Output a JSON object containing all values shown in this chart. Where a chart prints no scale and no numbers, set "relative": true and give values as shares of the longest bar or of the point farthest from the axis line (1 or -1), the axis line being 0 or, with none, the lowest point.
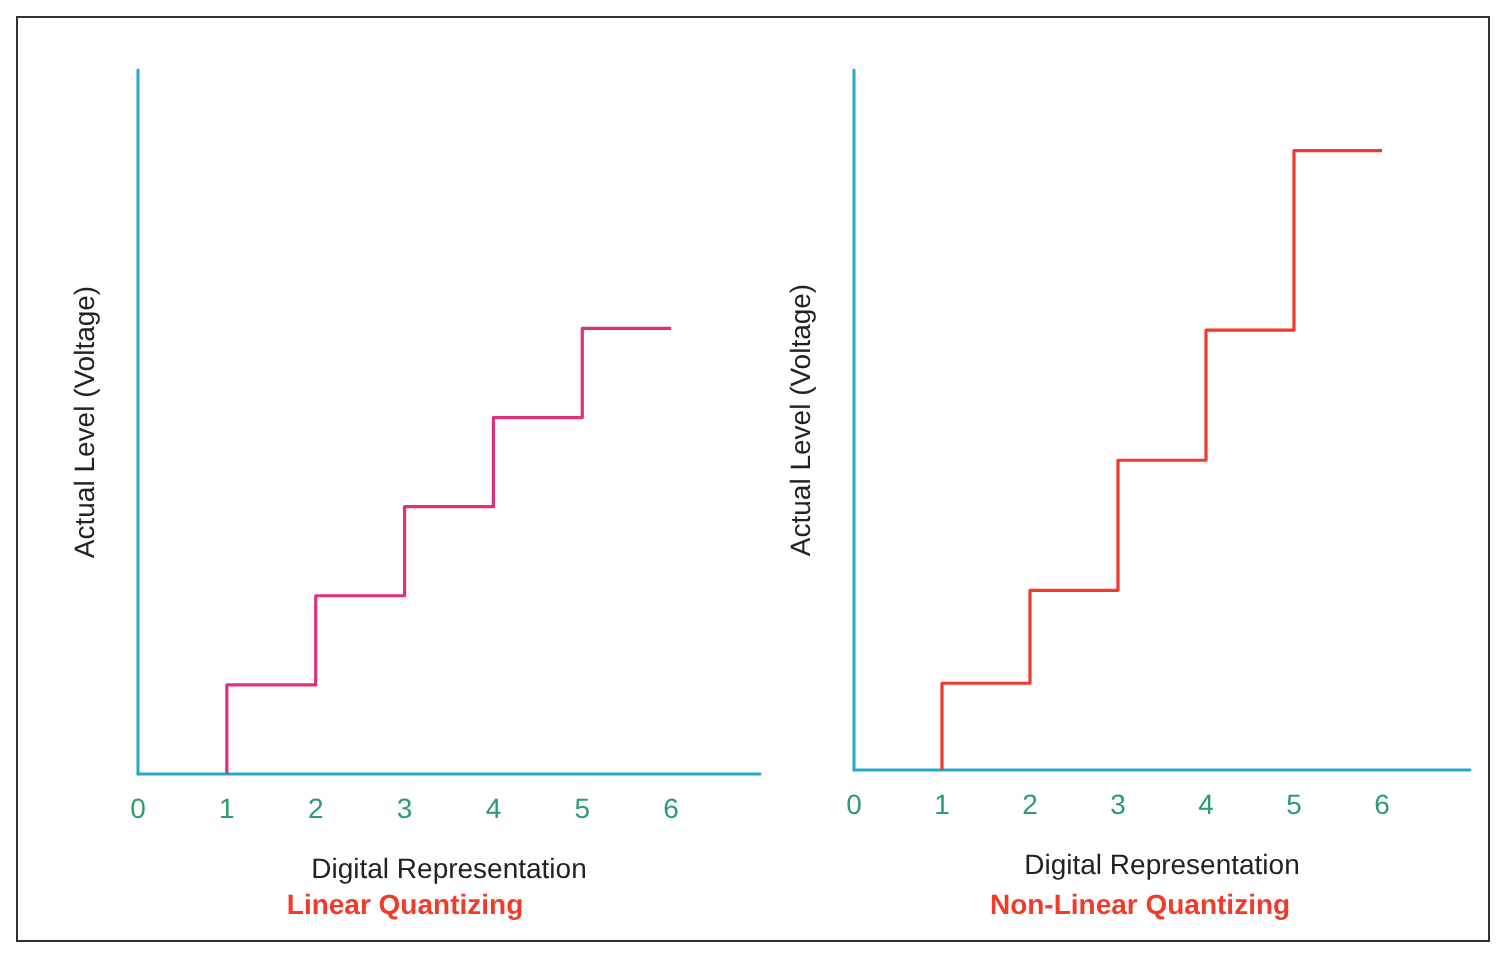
{
  "chart_data": [
    {
      "type": "step",
      "xlabel": "Digital Representation",
      "subtitle": "Linear Quantizing",
      "ylabel": "Actual Level (Voltage)",
      "relative": true,
      "xlim": [
        0,
        7
      ],
      "xticks": [
        0,
        1,
        2,
        3,
        4,
        5,
        6
      ],
      "grid": false,
      "marker": "none",
      "series": [
        {
          "color": "#e0307a",
          "x": [
            1,
            1,
            2,
            3,
            4,
            5,
            6
          ],
          "values": [
            0,
            0.2,
            0.4,
            0.6,
            0.8,
            1,
            1
          ]
        }
      ]
    },
    {
      "type": "step",
      "xlabel": "Digital Representation",
      "subtitle": "Non-Linear Quantizing",
      "ylabel": "Actual Level (Voltage)",
      "relative": true,
      "xlim": [
        0,
        7
      ],
      "xticks": [
        0,
        1,
        2,
        3,
        4,
        5,
        6
      ],
      "grid": false,
      "marker": "none",
      "series": [
        {
          "color": "#f03a2a",
          "x": [
            1,
            1,
            2,
            3,
            4,
            5,
            6
          ],
          "values": [
            0,
            0.14,
            0.29,
            0.5,
            0.71,
            1,
            1
          ]
        }
      ]
    }
  ]
}
